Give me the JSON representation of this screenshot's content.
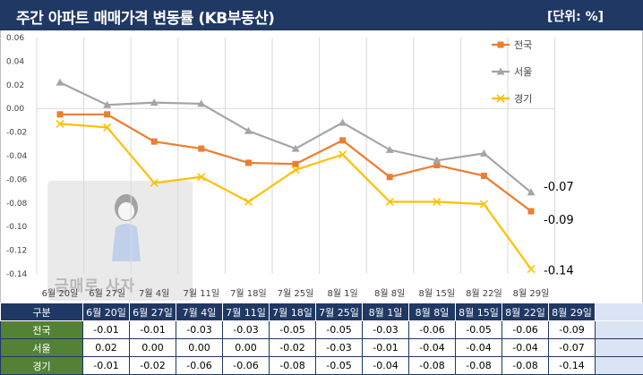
{
  "header": {
    "title": "주간 아파트 매매가격 변동률 (KB부동산)",
    "unit": "[단위: %]"
  },
  "watermark": {
    "text": "금매로 사자"
  },
  "chart_data": {
    "type": "line",
    "categories": [
      "6월 20일",
      "6월 27일",
      "7월 4일",
      "7월 11일",
      "7월 18일",
      "7월 25일",
      "8월 1일",
      "8월 8일",
      "8월 15일",
      "8월 22일",
      "8월 29일"
    ],
    "ylim": [
      -0.14,
      0.06
    ],
    "yticks": [
      "0.06",
      "0.04",
      "0.02",
      "0.00",
      "-0.02",
      "-0.04",
      "-0.06",
      "-0.08",
      "-0.10",
      "-0.12",
      "-0.14"
    ],
    "grid": "vertical",
    "legend": "top-right",
    "series": [
      {
        "name": "전국",
        "color": "#ed7d31",
        "marker": "square",
        "values": [
          -0.005,
          -0.005,
          -0.028,
          -0.034,
          -0.046,
          -0.047,
          -0.027,
          -0.058,
          -0.048,
          -0.057,
          -0.087
        ],
        "end_label": "-0.09"
      },
      {
        "name": "서울",
        "color": "#a5a5a5",
        "marker": "triangle",
        "values": [
          0.022,
          0.003,
          0.005,
          0.004,
          -0.019,
          -0.034,
          -0.012,
          -0.035,
          -0.044,
          -0.038,
          -0.071
        ],
        "end_label": "-0.07"
      },
      {
        "name": "경기",
        "color": "#ffc000",
        "marker": "x",
        "values": [
          -0.013,
          -0.016,
          -0.063,
          -0.058,
          -0.079,
          -0.052,
          -0.039,
          -0.079,
          -0.079,
          -0.081,
          -0.136
        ],
        "end_label": "-0.14"
      }
    ]
  },
  "table": {
    "corner": "구분",
    "columns": [
      "6월 20일",
      "6월 27일",
      "7월 4일",
      "7월 11일",
      "7월 18일",
      "7월 25일",
      "8월 1일",
      "8월 8일",
      "8월 15일",
      "8월 22일",
      "8월 29일"
    ],
    "rows": [
      {
        "label": "전국",
        "cells": [
          "-0.01",
          "-0.01",
          "-0.03",
          "-0.03",
          "-0.05",
          "-0.05",
          "-0.03",
          "-0.06",
          "-0.05",
          "-0.06",
          "-0.09"
        ]
      },
      {
        "label": "서울",
        "cells": [
          "0.02",
          "0.00",
          "0.00",
          "0.00",
          "-0.02",
          "-0.03",
          "-0.01",
          "-0.04",
          "-0.04",
          "-0.04",
          "-0.07"
        ]
      },
      {
        "label": "경기",
        "cells": [
          "-0.01",
          "-0.02",
          "-0.06",
          "-0.06",
          "-0.08",
          "-0.05",
          "-0.04",
          "-0.08",
          "-0.08",
          "-0.08",
          "-0.14"
        ]
      }
    ]
  }
}
